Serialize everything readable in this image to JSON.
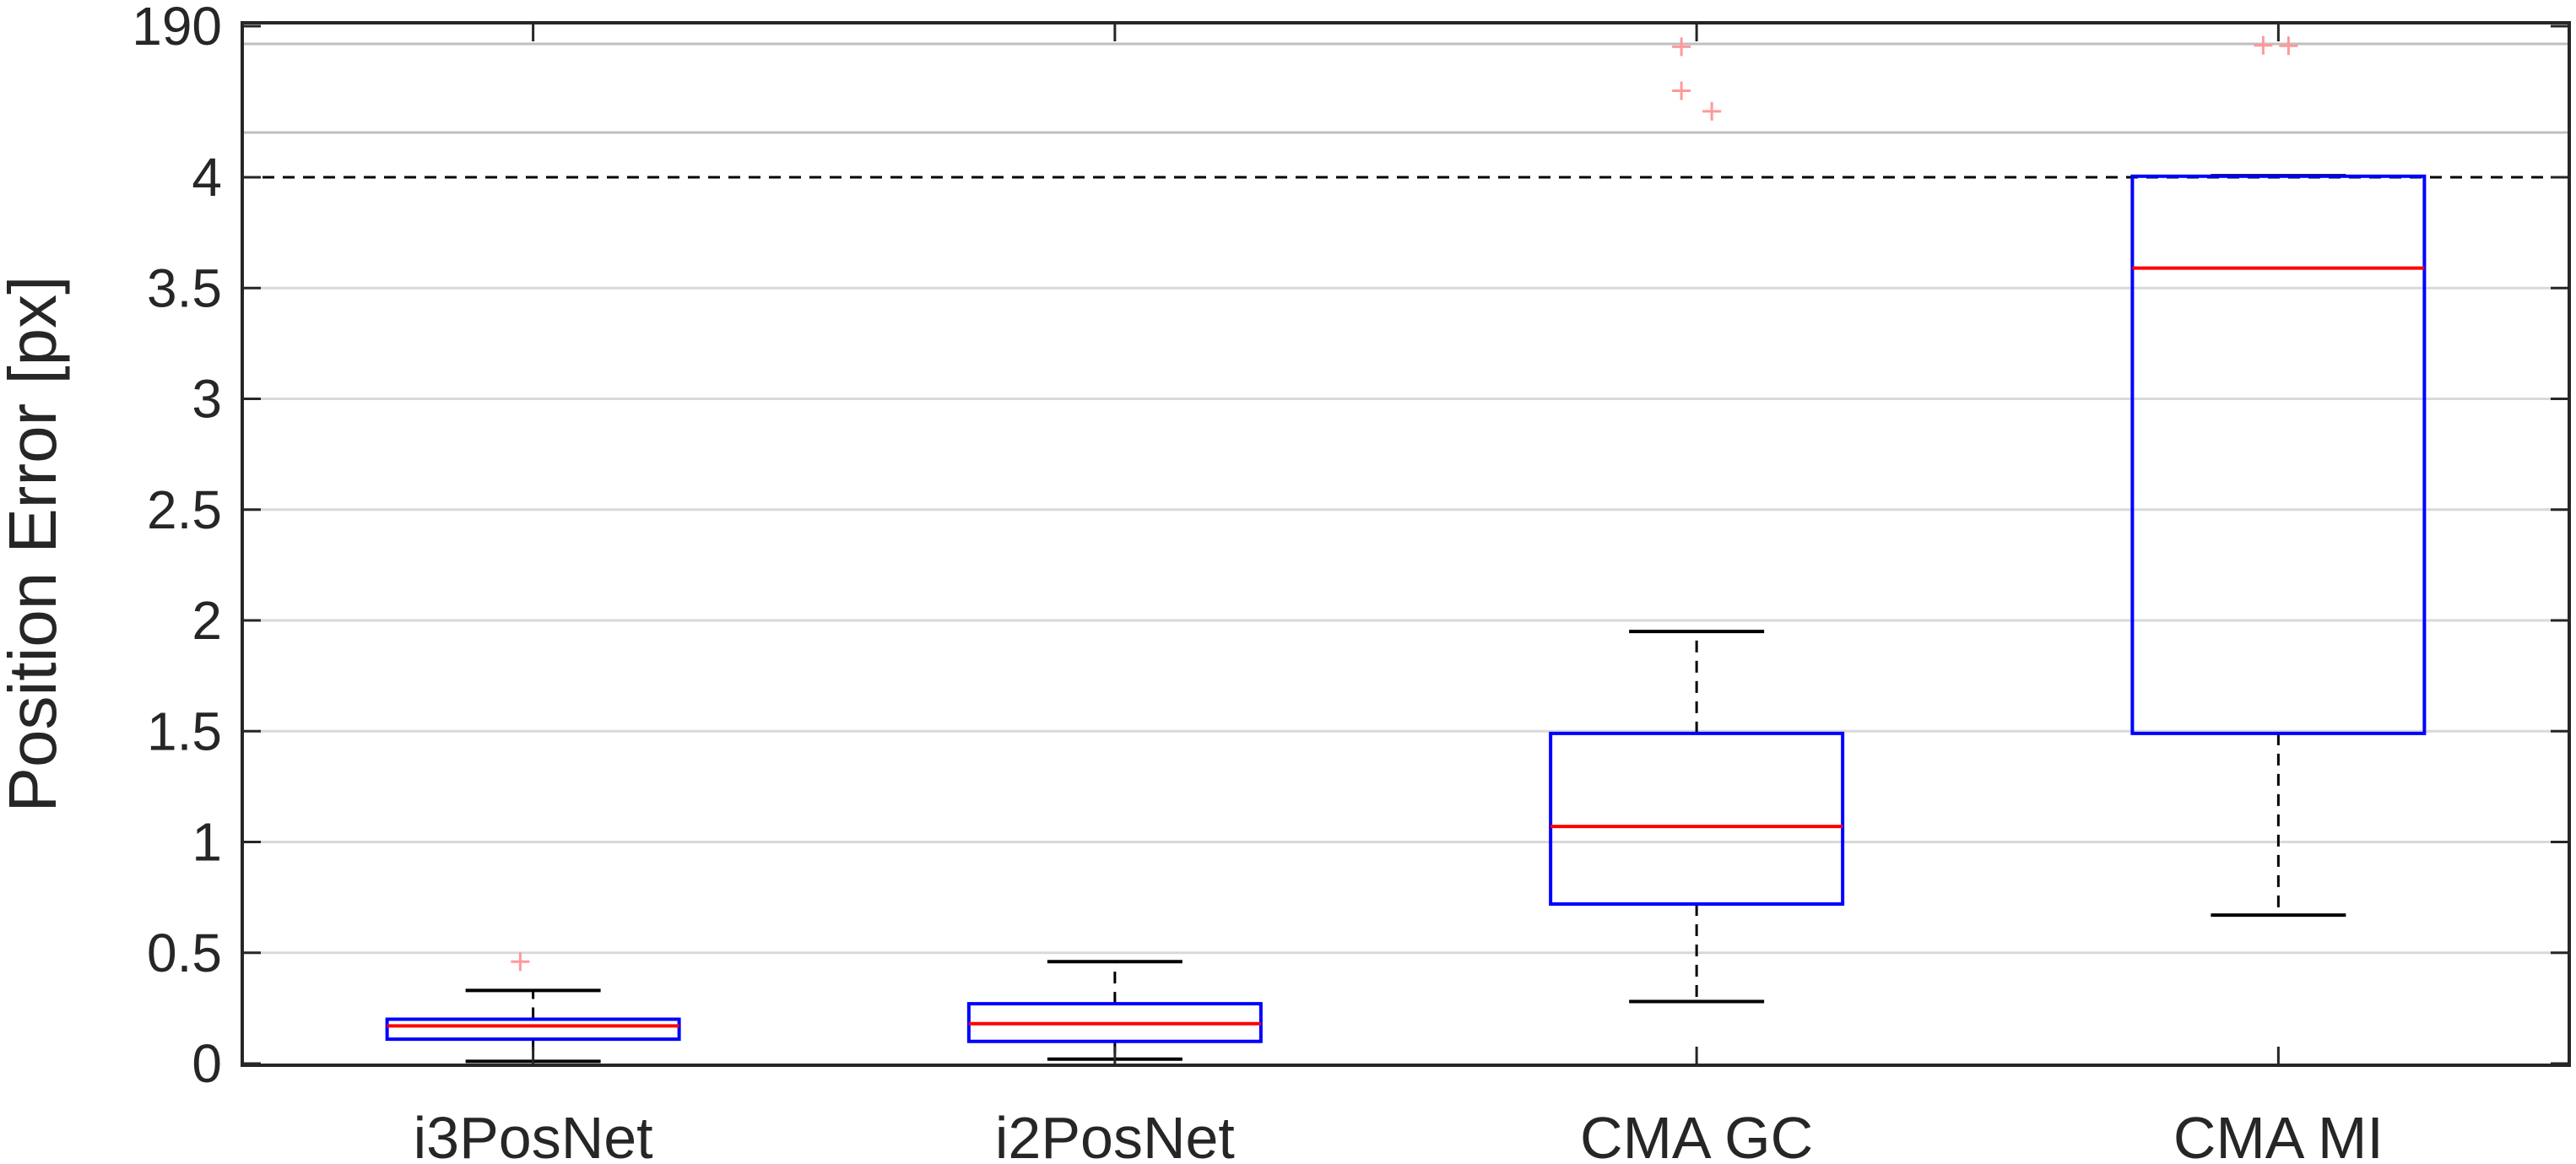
{
  "chart_data": {
    "type": "box",
    "title": "",
    "xlabel": "",
    "ylabel": "Position Error [px]",
    "categories": [
      "i3PosNet",
      "i2PosNet",
      "CMA GC",
      "CMA MI"
    ],
    "y_scale": "piecewise-linear: linear 0–4 [px], compressed break segment 4–190 [px]",
    "ylim": [
      0,
      190
    ],
    "yticks": [
      "0",
      "0.5",
      "1",
      "1.5",
      "2",
      "2.5",
      "3",
      "3.5",
      "4",
      "190"
    ],
    "break_threshold": 4,
    "threshold_line_style": "dashed",
    "grid": "horizontal",
    "colors": {
      "box": "#0000ff",
      "median": "#ff0000",
      "whisker": "#000000",
      "outlier": "#ff9999",
      "grid": "#d9d9d9",
      "upper_grid": "#bfbfbf",
      "threshold_line": "#000000"
    },
    "boxes": [
      {
        "category": "i3PosNet",
        "whisker_low": 0.01,
        "q1": 0.11,
        "median": 0.17,
        "q3": 0.2,
        "whisker_high": 0.33,
        "outliers": [
          0.46
        ]
      },
      {
        "category": "i2PosNet",
        "whisker_low": 0.02,
        "q1": 0.1,
        "median": 0.18,
        "q3": 0.27,
        "whisker_high": 0.46,
        "outliers": []
      },
      {
        "category": "CMA GC",
        "whisker_low": 0.28,
        "q1": 0.72,
        "median": 1.07,
        "q3": 1.49,
        "whisker_high": 1.95,
        "outliers": [
          27.0,
          49.0,
          175.0
        ]
      },
      {
        "category": "CMA MI",
        "whisker_low": 0.67,
        "q1": 1.49,
        "median": 3.59,
        "q3": 4.12,
        "whisker_high": 4.19,
        "outliers": [
          180.0,
          182.0
        ]
      }
    ]
  }
}
